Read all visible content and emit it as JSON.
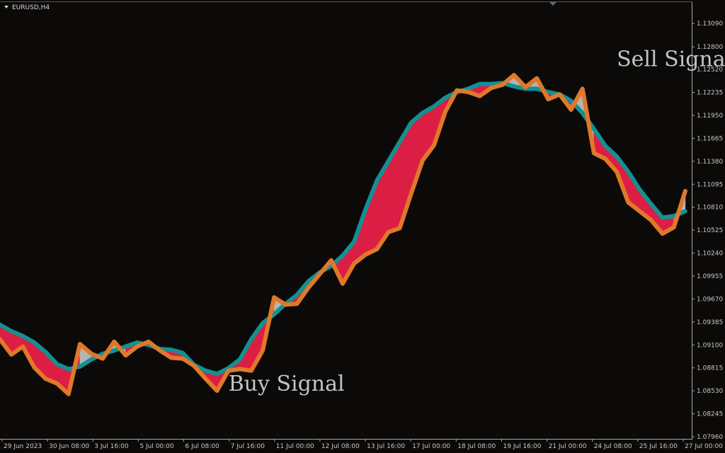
{
  "window": {
    "symbol_label": "EURUSD,H4"
  },
  "colors": {
    "background": "#0c0a08",
    "axis": "#aaaaaa",
    "fast_line": "#e0782a",
    "slow_line": "#129191",
    "bull_fill": "#b4b4b4",
    "bear_fill": "#dc1e44"
  },
  "chart_data": {
    "type": "line",
    "title": "",
    "xlabel": "",
    "ylabel": "",
    "ylim": [
      1.0796,
      1.1318
    ],
    "x_ticks": [
      "29 Jun 2023",
      "30 Jun 08:00",
      "3 Jul 16:00",
      "5 Jul 00:00",
      "6 Jul 08:00",
      "7 Jul 16:00",
      "11 Jul 00:00",
      "12 Jul 08:00",
      "13 Jul 16:00",
      "17 Jul 00:00",
      "18 Jul 08:00",
      "19 Jul 16:00",
      "21 Jul 00:00",
      "24 Jul 08:00",
      "25 Jul 16:00",
      "27 Jul 00:00"
    ],
    "y_ticks": [
      "1.13090",
      "1.12800",
      "1.12520",
      "1.12235",
      "1.11950",
      "1.11665",
      "1.11380",
      "1.11095",
      "1.10810",
      "1.10525",
      "1.10240",
      "1.09955",
      "1.09670",
      "1.09385",
      "1.09100",
      "1.08815",
      "1.08530",
      "1.08245",
      "1.07960"
    ],
    "x_index": [
      0,
      4,
      8,
      12,
      16,
      20,
      24,
      28,
      32,
      36,
      40,
      44,
      48,
      52,
      56,
      60,
      64,
      68,
      72,
      76,
      80,
      84,
      88,
      92,
      96,
      100,
      104,
      108,
      112,
      116,
      120,
      124,
      128,
      132,
      136,
      140,
      144,
      148,
      152,
      156,
      160,
      164,
      168,
      172,
      176,
      180,
      184,
      188,
      192,
      196,
      200,
      204,
      208,
      212,
      216,
      220,
      224,
      228,
      232,
      236,
      240
    ],
    "series": [
      {
        "values": [
          1.0917,
          1.0898,
          1.0908,
          1.0882,
          1.0868,
          1.0862,
          1.0849,
          1.0911,
          1.0899,
          1.0893,
          1.0914,
          1.0897,
          1.0908,
          1.0914,
          1.0903,
          1.0894,
          1.0893,
          1.0884,
          1.0868,
          1.0853,
          1.0878,
          1.088,
          1.0878,
          1.0903,
          1.0969,
          1.096,
          1.0961,
          1.0981,
          1.0998,
          1.1015,
          1.0986,
          1.1011,
          1.1022,
          1.1029,
          1.105,
          1.1055,
          1.1098,
          1.1139,
          1.1158,
          1.12,
          1.1226,
          1.1224,
          1.1219,
          1.1229,
          1.1233,
          1.1245,
          1.123,
          1.1241,
          1.1215,
          1.1221,
          1.1202,
          1.1228,
          1.1148,
          1.1141,
          1.1125,
          1.1087,
          1.1076,
          1.1065,
          1.1048,
          1.1056,
          1.1101
        ]
      },
      {
        "values": [
          1.0935,
          1.0927,
          1.0921,
          1.0913,
          1.0901,
          1.0886,
          1.088,
          1.0883,
          1.0892,
          1.0899,
          1.0903,
          1.0908,
          1.0913,
          1.091,
          1.0905,
          1.0904,
          1.09,
          1.0885,
          1.0878,
          1.0874,
          1.0881,
          1.0892,
          1.0917,
          1.0937,
          1.0948,
          1.0961,
          1.0972,
          1.0989,
          1.1,
          1.1008,
          1.1021,
          1.1038,
          1.1078,
          1.1114,
          1.1138,
          1.1162,
          1.1186,
          1.1198,
          1.1206,
          1.1217,
          1.1224,
          1.1228,
          1.1234,
          1.1234,
          1.1235,
          1.1231,
          1.1228,
          1.1228,
          1.1224,
          1.1221,
          1.1213,
          1.1198,
          1.1178,
          1.1157,
          1.1144,
          1.1125,
          1.1103,
          1.1085,
          1.1068,
          1.107,
          1.1076
        ]
      }
    ],
    "annotations": [
      {
        "text": "Sell Signal",
        "x": 216,
        "y": 1.1256
      },
      {
        "text": "Buy Signal",
        "x": 80,
        "y": 1.0853
      }
    ]
  }
}
